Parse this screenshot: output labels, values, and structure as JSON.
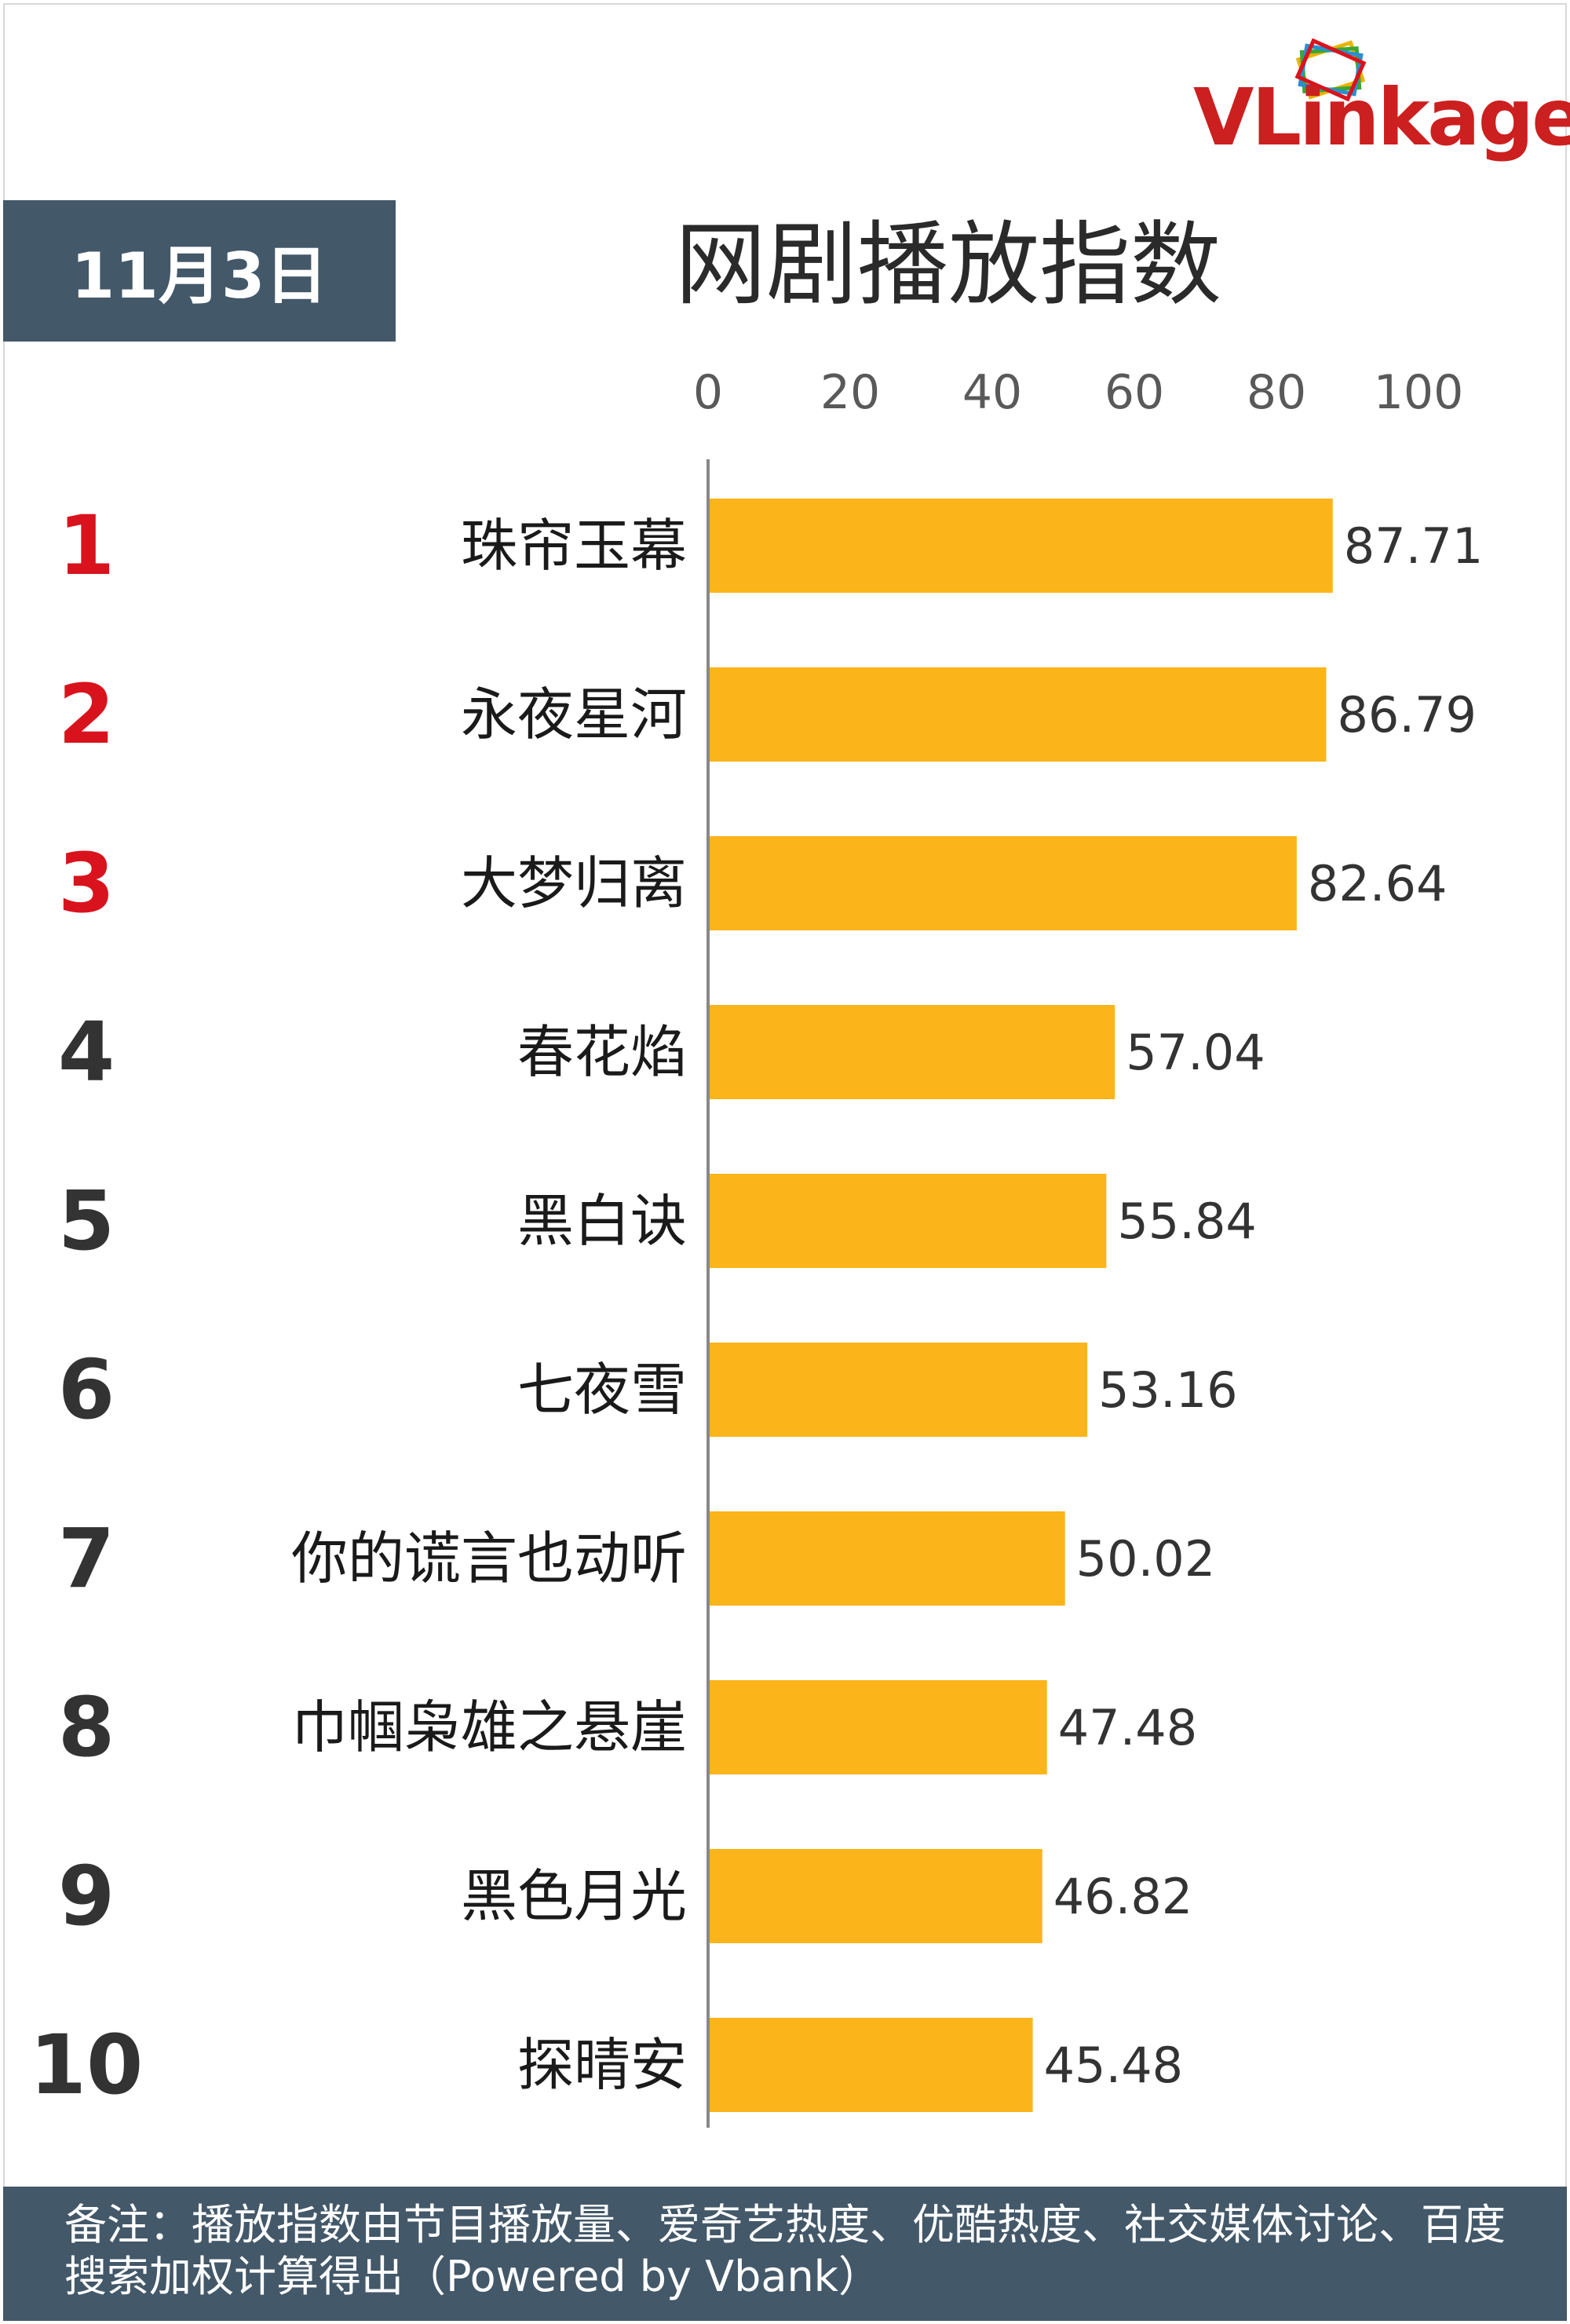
{
  "brand": {
    "logo_text": "VLinkage"
  },
  "header": {
    "date": "11月3日",
    "title": "网剧播放指数"
  },
  "footer": {
    "note": "备注：播放指数由节目播放量、爱奇艺热度、优酷热度、社交媒体讨论、百度搜索加权计算得出（Powered by Vbank）"
  },
  "colors": {
    "bar": "#FBB41A",
    "rank_top": "#D9131D",
    "rank": "#333333",
    "header_bg": "#435869",
    "brand_red": "#CC1F1F"
  },
  "chart_data": {
    "type": "bar",
    "orientation": "horizontal",
    "title": "网剧播放指数",
    "xlim": [
      0,
      100
    ],
    "xticks": [
      0,
      20,
      40,
      60,
      80,
      100
    ],
    "ranks": [
      "1",
      "2",
      "3",
      "4",
      "5",
      "6",
      "7",
      "8",
      "9",
      "10"
    ],
    "categories": [
      "珠帘玉幕",
      "永夜星河",
      "大梦归离",
      "春花焰",
      "黑白诀",
      "七夜雪",
      "你的谎言也动听",
      "巾帼枭雄之悬崖",
      "黑色月光",
      "探晴安"
    ],
    "values": [
      87.71,
      86.79,
      82.64,
      57.04,
      55.84,
      53.16,
      50.02,
      47.48,
      46.82,
      45.48
    ],
    "value_labels": [
      "87.71",
      "86.79",
      "82.64",
      "57.04",
      "55.84",
      "53.16",
      "50.02",
      "47.48",
      "46.82",
      "45.48"
    ],
    "grid": false,
    "legend": "none"
  }
}
